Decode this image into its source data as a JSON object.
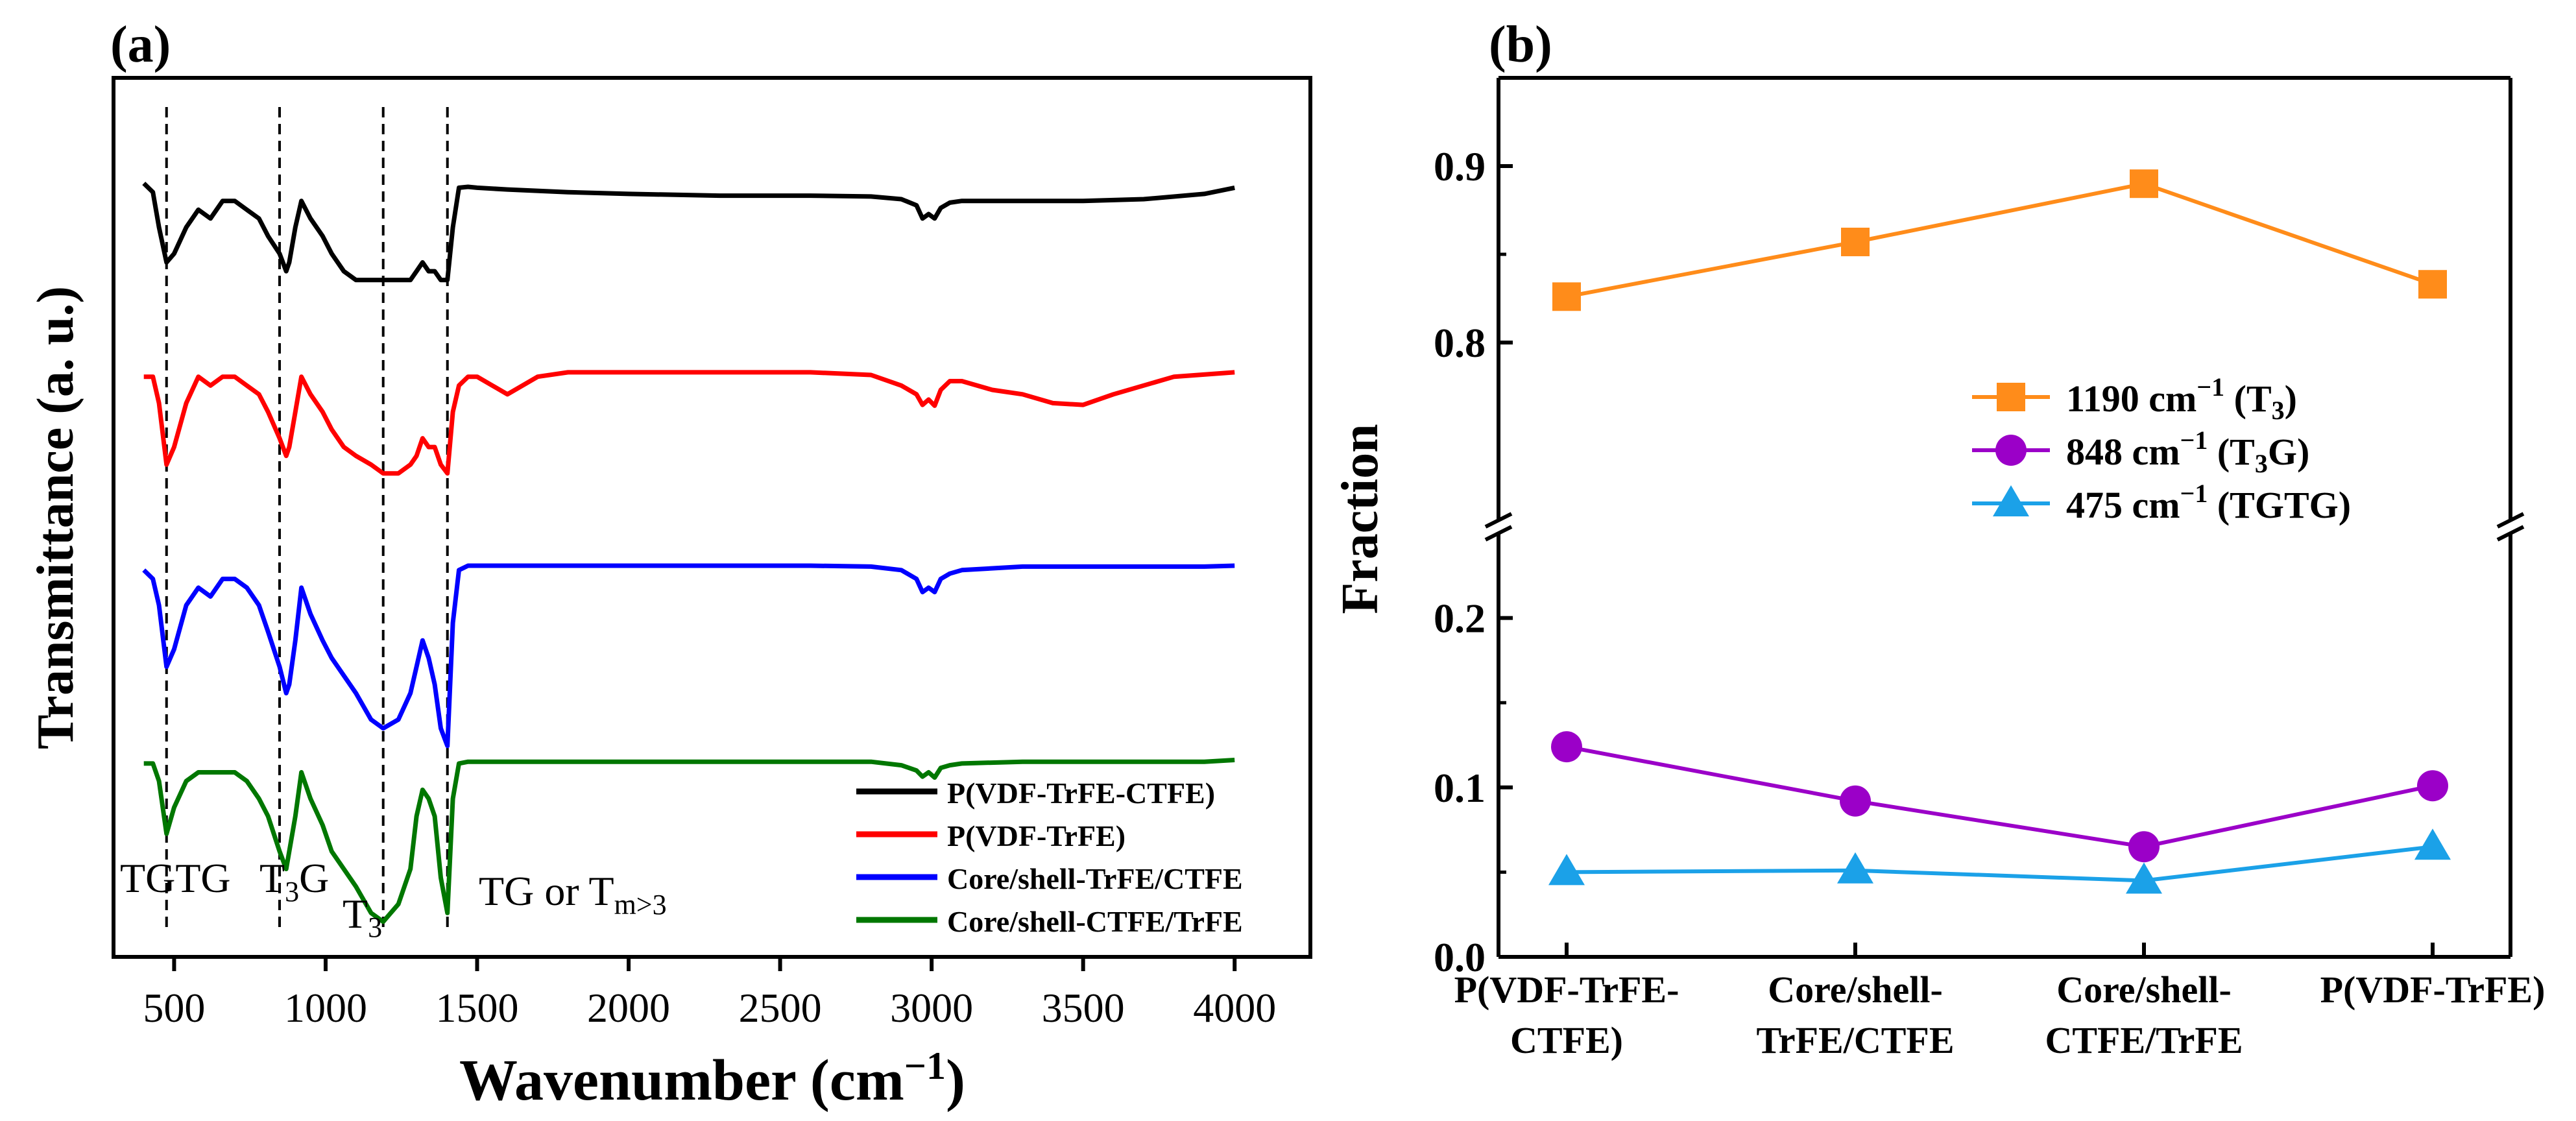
{
  "chart_data": [
    {
      "panel_label": "(a)",
      "type": "line",
      "xlabel": "Wavenumber",
      "xlabel_unit_base": "cm",
      "xlabel_unit_exp": "−1",
      "ylabel": "Transmittance (a. u.)",
      "xlim": [
        300,
        4250
      ],
      "ylim": [
        0,
        1
      ],
      "xticks": [
        500,
        1000,
        1500,
        2000,
        2500,
        3000,
        3500,
        4000
      ],
      "xticklabels": [
        "500",
        "1000",
        "1500",
        "2000",
        "2500",
        "3000",
        "3500",
        "4000"
      ],
      "series": [
        {
          "name": "P(VDF-TrFE-CTFE)",
          "color": "#000000",
          "x": [
            400,
            430,
            450,
            475,
            500,
            540,
            580,
            620,
            660,
            700,
            740,
            780,
            810,
            848,
            870,
            880,
            900,
            920,
            950,
            990,
            1020,
            1060,
            1100,
            1150,
            1190,
            1240,
            1280,
            1300,
            1320,
            1340,
            1360,
            1380,
            1402,
            1420,
            1440,
            1470,
            1500,
            1600,
            1800,
            2000,
            2300,
            2600,
            2800,
            2900,
            2950,
            2970,
            2990,
            3010,
            3030,
            3060,
            3100,
            3300,
            3500,
            3700,
            3900,
            4000
          ],
          "y": [
            0.88,
            0.87,
            0.83,
            0.79,
            0.8,
            0.83,
            0.85,
            0.84,
            0.86,
            0.86,
            0.85,
            0.84,
            0.82,
            0.8,
            0.78,
            0.79,
            0.83,
            0.86,
            0.84,
            0.82,
            0.8,
            0.78,
            0.77,
            0.77,
            0.77,
            0.77,
            0.77,
            0.78,
            0.79,
            0.78,
            0.78,
            0.77,
            0.77,
            0.83,
            0.875,
            0.876,
            0.875,
            0.873,
            0.87,
            0.868,
            0.866,
            0.866,
            0.865,
            0.862,
            0.855,
            0.84,
            0.845,
            0.84,
            0.852,
            0.858,
            0.86,
            0.86,
            0.86,
            0.862,
            0.868,
            0.875
          ]
        },
        {
          "name": "P(VDF-TrFE)",
          "color": "#ff0000",
          "x": [
            400,
            430,
            450,
            475,
            500,
            540,
            580,
            620,
            660,
            700,
            740,
            780,
            810,
            848,
            870,
            880,
            900,
            920,
            950,
            990,
            1020,
            1060,
            1100,
            1150,
            1190,
            1240,
            1280,
            1300,
            1320,
            1340,
            1360,
            1380,
            1402,
            1420,
            1440,
            1470,
            1500,
            1600,
            1700,
            1800,
            2000,
            2300,
            2600,
            2800,
            2900,
            2950,
            2970,
            2990,
            3010,
            3030,
            3060,
            3100,
            3200,
            3300,
            3400,
            3500,
            3600,
            3800,
            4000
          ],
          "y": [
            0.66,
            0.66,
            0.63,
            0.56,
            0.58,
            0.63,
            0.66,
            0.65,
            0.66,
            0.66,
            0.65,
            0.64,
            0.62,
            0.59,
            0.57,
            0.58,
            0.62,
            0.66,
            0.64,
            0.62,
            0.6,
            0.58,
            0.57,
            0.56,
            0.55,
            0.55,
            0.56,
            0.57,
            0.59,
            0.58,
            0.58,
            0.56,
            0.55,
            0.62,
            0.65,
            0.66,
            0.66,
            0.64,
            0.66,
            0.665,
            0.665,
            0.665,
            0.665,
            0.662,
            0.65,
            0.64,
            0.628,
            0.634,
            0.627,
            0.645,
            0.655,
            0.655,
            0.645,
            0.64,
            0.63,
            0.628,
            0.64,
            0.66,
            0.665
          ]
        },
        {
          "name": "Core/shell-TrFE/CTFE",
          "color": "#0000ff",
          "x": [
            400,
            430,
            450,
            475,
            500,
            540,
            580,
            620,
            660,
            700,
            740,
            780,
            810,
            848,
            870,
            880,
            900,
            920,
            950,
            990,
            1020,
            1060,
            1100,
            1150,
            1190,
            1240,
            1280,
            1300,
            1320,
            1340,
            1360,
            1380,
            1402,
            1420,
            1440,
            1470,
            1500,
            1600,
            1800,
            2000,
            2300,
            2600,
            2800,
            2900,
            2950,
            2970,
            2990,
            3010,
            3030,
            3060,
            3100,
            3300,
            3500,
            3700,
            3900,
            4000
          ],
          "y": [
            0.44,
            0.43,
            0.4,
            0.33,
            0.35,
            0.4,
            0.42,
            0.41,
            0.43,
            0.43,
            0.42,
            0.4,
            0.37,
            0.33,
            0.3,
            0.31,
            0.36,
            0.42,
            0.39,
            0.36,
            0.34,
            0.32,
            0.3,
            0.27,
            0.26,
            0.27,
            0.3,
            0.33,
            0.36,
            0.34,
            0.31,
            0.26,
            0.24,
            0.38,
            0.44,
            0.445,
            0.445,
            0.445,
            0.445,
            0.445,
            0.445,
            0.445,
            0.444,
            0.44,
            0.43,
            0.415,
            0.42,
            0.415,
            0.43,
            0.436,
            0.44,
            0.444,
            0.444,
            0.444,
            0.444,
            0.445
          ]
        },
        {
          "name": "Core/shell-CTFE/TrFE",
          "color": "#007700",
          "x": [
            400,
            430,
            450,
            475,
            500,
            540,
            580,
            620,
            660,
            700,
            740,
            780,
            810,
            848,
            870,
            880,
            900,
            920,
            950,
            990,
            1020,
            1060,
            1100,
            1150,
            1190,
            1240,
            1280,
            1300,
            1320,
            1340,
            1360,
            1380,
            1402,
            1420,
            1440,
            1470,
            1500,
            1600,
            1800,
            2000,
            2300,
            2600,
            2800,
            2900,
            2950,
            2970,
            2990,
            3010,
            3030,
            3060,
            3100,
            3300,
            3500,
            3700,
            3900,
            4000
          ],
          "y": [
            0.22,
            0.22,
            0.2,
            0.14,
            0.17,
            0.2,
            0.21,
            0.21,
            0.21,
            0.21,
            0.2,
            0.18,
            0.16,
            0.12,
            0.1,
            0.12,
            0.16,
            0.21,
            0.18,
            0.15,
            0.12,
            0.1,
            0.08,
            0.05,
            0.04,
            0.06,
            0.1,
            0.16,
            0.19,
            0.18,
            0.16,
            0.09,
            0.05,
            0.18,
            0.22,
            0.222,
            0.222,
            0.222,
            0.222,
            0.222,
            0.222,
            0.222,
            0.222,
            0.218,
            0.212,
            0.205,
            0.21,
            0.204,
            0.215,
            0.218,
            0.22,
            0.222,
            0.222,
            0.222,
            0.222,
            0.224
          ]
        }
      ],
      "reference_lines": [
        475,
        848,
        1190,
        1402
      ],
      "annotations": {
        "tgtg": "TGTG",
        "t3g_main": "T",
        "t3g_sub": "3",
        "t3g_tail": "G",
        "t3_main": "T",
        "t3_sub": "3",
        "tg_main": "TG or T",
        "tg_sub": "m>3"
      },
      "legend_location": "lower-right"
    },
    {
      "panel_label": "(b)",
      "type": "line",
      "ylabel": "Fraction",
      "categories": [
        [
          "P(VDF-TrFE-",
          "CTFE)"
        ],
        [
          "Core/shell-",
          "TrFE/CTFE"
        ],
        [
          "Core/shell-",
          "CTFE/TrFE"
        ],
        [
          "P(VDF-TrFE)"
        ]
      ],
      "y_axis_break": true,
      "ylim_lower": [
        0.0,
        0.25
      ],
      "ylim_upper": [
        0.7,
        0.95
      ],
      "yticks": [
        0.0,
        0.1,
        0.2,
        0.8,
        0.9
      ],
      "yticklabels": [
        "0.0",
        "0.1",
        "0.2",
        "0.8",
        "0.9"
      ],
      "series": [
        {
          "name": "1190 cm⁻¹ (T₃)",
          "label_main": "1190 cm",
          "label_exp": "−1",
          "label_pre": " (T",
          "label_sub": "3",
          "label_post": ")",
          "color": "#ff8c1a",
          "marker": "square",
          "values": [
            0.826,
            0.857,
            0.89,
            0.833
          ]
        },
        {
          "name": "848 cm⁻¹ (T₃G)",
          "label_main": "848 cm",
          "label_exp": "−1",
          "label_pre": " (T",
          "label_sub": "3",
          "label_post": "G)",
          "color": "#9b00c8",
          "marker": "circle",
          "values": [
            0.124,
            0.092,
            0.065,
            0.101
          ]
        },
        {
          "name": "475 cm⁻¹ (TGTG)",
          "label_main": "475 cm",
          "label_exp": "−1",
          "label_pre": " (TGTG)",
          "label_sub": "",
          "label_post": "",
          "color": "#1ba1e8",
          "marker": "triangle",
          "values": [
            0.05,
            0.051,
            0.045,
            0.065
          ]
        }
      ],
      "legend_location": "upper-right"
    }
  ]
}
